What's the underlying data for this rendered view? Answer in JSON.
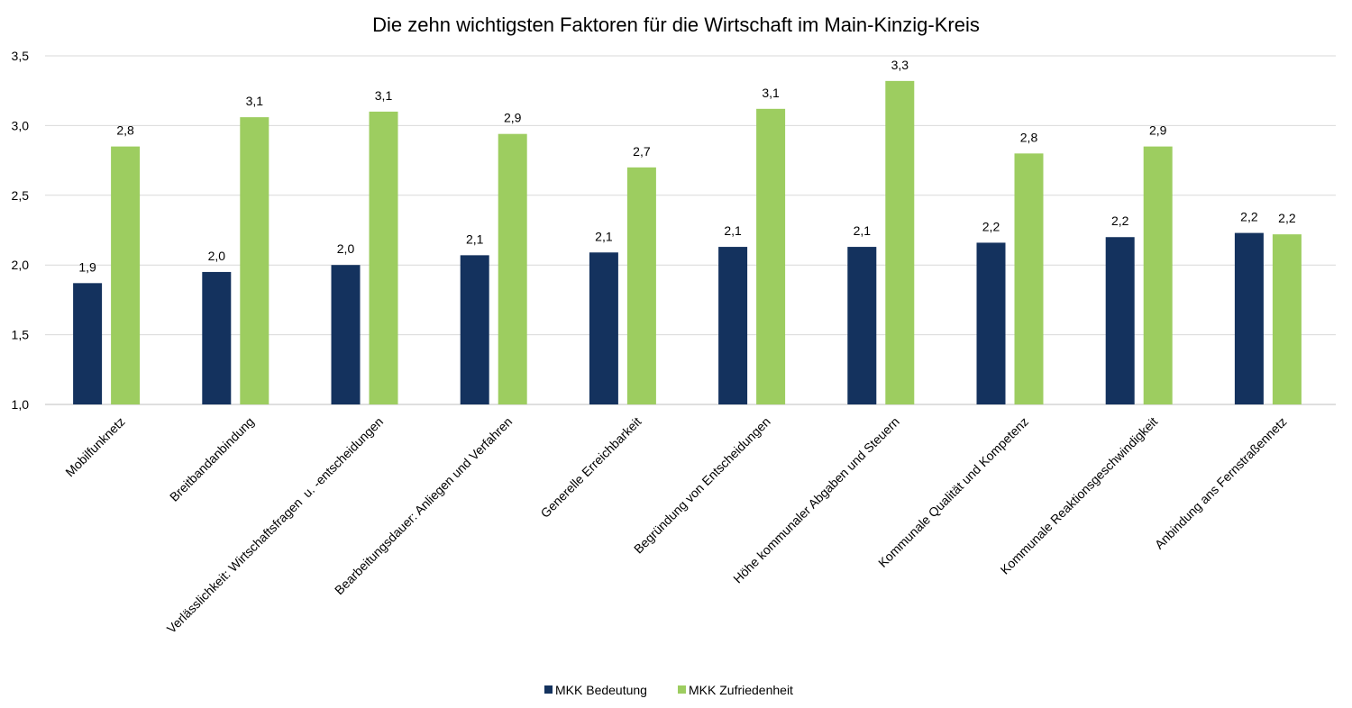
{
  "chart_data": {
    "type": "bar",
    "title": "Die zehn wichtigsten Faktoren für die Wirtschaft im Main-Kinzig-Kreis",
    "xlabel": "",
    "ylabel": "",
    "ylim": [
      1.0,
      3.5
    ],
    "yticks": [
      {
        "value": 1.0,
        "label": "1,0"
      },
      {
        "value": 1.5,
        "label": "1,5"
      },
      {
        "value": 2.0,
        "label": "2,0"
      },
      {
        "value": 2.5,
        "label": "2,5"
      },
      {
        "value": 3.0,
        "label": "3,0"
      },
      {
        "value": 3.5,
        "label": "3,5"
      }
    ],
    "grid": true,
    "legend_position": "bottom",
    "categories": [
      "Mobilfunknetz",
      "Breitbandanbindung",
      "Verlässlichkeit: Wirtschaftsfragen  u. -entscheidungen",
      "Bearbeitungsdauer: Anliegen und Verfahren",
      "Generelle Erreichbarkeit",
      "Begründung von Entscheidungen",
      "Höhe kommunaler Abgaben und Steuern",
      "Kommunale Qualität und Kompetenz",
      "Kommunale Reaktionsgeschwindigkeit",
      "Anbindung ans Fernstraßennetz"
    ],
    "series": [
      {
        "name": "MKK Bedeutung",
        "color": "#14325e",
        "values": [
          1.87,
          1.95,
          2.0,
          2.07,
          2.09,
          2.13,
          2.13,
          2.16,
          2.2,
          2.23
        ],
        "labels": [
          "1,9",
          "2,0",
          "2,0",
          "2,1",
          "2,1",
          "2,1",
          "2,1",
          "2,2",
          "2,2",
          "2,2"
        ]
      },
      {
        "name": "MKK Zufriedenheit",
        "color": "#9dcd60",
        "values": [
          2.85,
          3.06,
          3.1,
          2.94,
          2.7,
          3.12,
          3.32,
          2.8,
          2.85,
          2.22
        ],
        "labels": [
          "2,8",
          "3,1",
          "3,1",
          "2,9",
          "2,7",
          "3,1",
          "3,3",
          "2,8",
          "2,9",
          "2,2"
        ]
      }
    ]
  }
}
